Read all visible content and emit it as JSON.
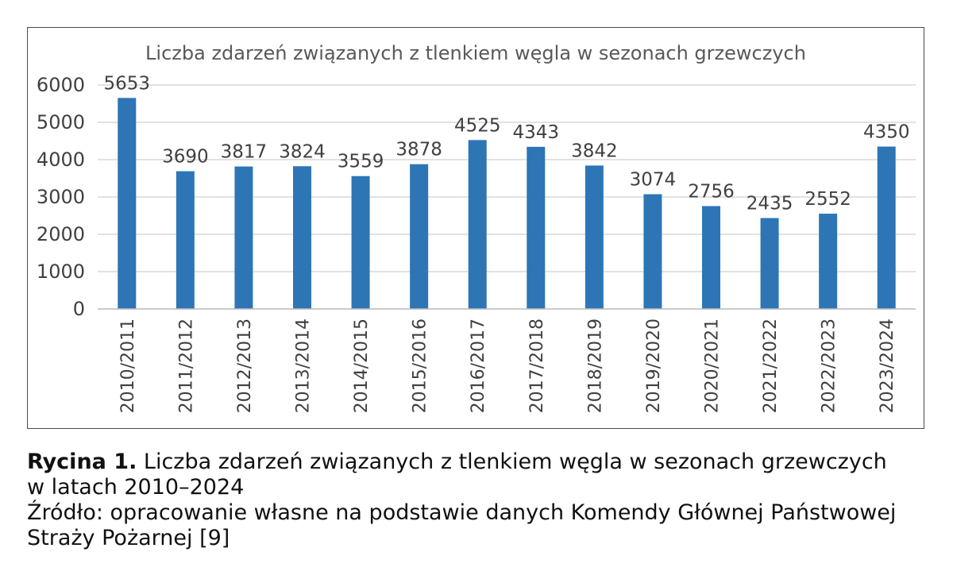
{
  "chart_data": {
    "type": "bar",
    "title": "Liczba zdarzeń związanych z tlenkiem węgla w sezonach grzewczych",
    "xlabel": "",
    "ylabel": "",
    "ylim": [
      0,
      6000
    ],
    "yticks": [
      "0",
      "1000",
      "2000",
      "3000",
      "4000",
      "5000",
      "6000"
    ],
    "grid": true,
    "legend": "none",
    "bar_color": "#2e75b6",
    "categories": [
      "2010/2011",
      "2011/2012",
      "2012/2013",
      "2013/2014",
      "2014/2015",
      "2015/2016",
      "2016/2017",
      "2017/2018",
      "2018/2019",
      "2019/2020",
      "2020/2021",
      "2021/2022",
      "2022/2023",
      "2023/2024"
    ],
    "values": [
      5653,
      3690,
      3817,
      3824,
      3559,
      3878,
      4525,
      4343,
      3842,
      3074,
      2756,
      2435,
      2552,
      4350
    ]
  },
  "caption": {
    "label": "Rycina 1.",
    "text_line1": " Liczba zdarzeń związanych z tlenkiem węgla w sezonach grzewczych",
    "text_line2": "w latach 2010–2024",
    "source_line1": "Źródło: opracowanie własne na podstawie danych Komendy Głównej Państwowej",
    "source_line2": "Straży Pożarnej [9]"
  }
}
